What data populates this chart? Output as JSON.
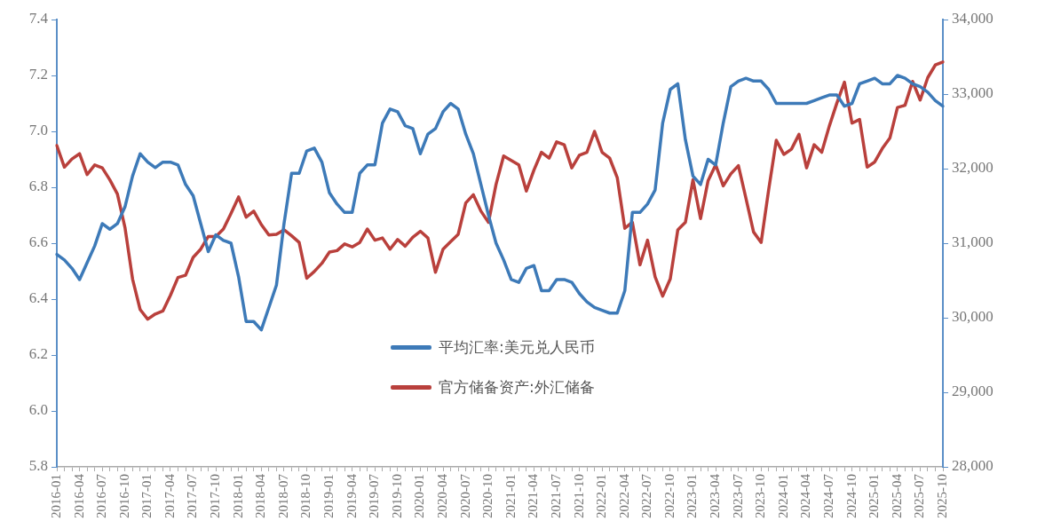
{
  "chart_data": {
    "type": "line",
    "categories": [
      "2016-01",
      null,
      null,
      "2016-04",
      null,
      null,
      "2016-07",
      null,
      null,
      "2016-10",
      null,
      null,
      "2017-01",
      null,
      null,
      "2017-04",
      null,
      null,
      "2017-07",
      null,
      null,
      "2017-10",
      null,
      null,
      "2018-01",
      null,
      null,
      "2018-04",
      null,
      null,
      "2018-07",
      null,
      null,
      "2018-10",
      null,
      null,
      "2019-01",
      null,
      null,
      "2019-04",
      null,
      null,
      "2019-07",
      null,
      null,
      "2019-10",
      null,
      null,
      "2020-01",
      null,
      null,
      "2020-04",
      null,
      null,
      "2020-07",
      null,
      null,
      "2020-10",
      null,
      null,
      "2021-01",
      null,
      null,
      "2021-04",
      null,
      null,
      "2021-07",
      null,
      null,
      "2021-10",
      null,
      null,
      "2022-01",
      null,
      null,
      "2022-04",
      null,
      null,
      "2022-07",
      null,
      null,
      "2022-10",
      null,
      null,
      "2023-01",
      null,
      null,
      "2023-04",
      null,
      null,
      "2023-07",
      null,
      null,
      "2023-10",
      null,
      null,
      "2024-01",
      null,
      null,
      "2024-04",
      null,
      null,
      "2024-07",
      null,
      null,
      "2024-10",
      null,
      null,
      "2025-01",
      null,
      null,
      "2025-04",
      null,
      null,
      "2025-07",
      null,
      null,
      "2025-10"
    ],
    "series": [
      {
        "name": "平均汇率:美元兑人民币",
        "color": "#3d7ab8",
        "values": [
          6.56,
          6.54,
          6.51,
          6.47,
          6.53,
          6.59,
          6.67,
          6.65,
          6.67,
          6.73,
          6.84,
          6.92,
          6.89,
          6.87,
          6.89,
          6.89,
          6.88,
          6.81,
          6.77,
          6.67,
          6.57,
          6.63,
          6.61,
          6.6,
          6.48,
          6.32,
          6.32,
          6.29,
          6.37,
          6.45,
          6.67,
          6.85,
          6.85,
          6.93,
          6.94,
          6.89,
          6.78,
          6.74,
          6.71,
          6.71,
          6.85,
          6.88,
          6.88,
          7.03,
          7.08,
          7.07,
          7.02,
          7.01,
          6.92,
          6.99,
          7.01,
          7.07,
          7.1,
          7.08,
          6.99,
          6.92,
          6.81,
          6.7,
          6.6,
          6.54,
          6.47,
          6.46,
          6.51,
          6.52,
          6.43,
          6.43,
          6.47,
          6.47,
          6.46,
          6.42,
          6.39,
          6.37,
          6.36,
          6.35,
          6.35,
          6.43,
          6.71,
          6.71,
          6.74,
          6.79,
          7.03,
          7.15,
          7.17,
          6.97,
          6.84,
          6.81,
          6.9,
          6.88,
          7.03,
          7.16,
          7.18,
          7.19,
          7.18,
          7.18,
          7.15,
          7.1,
          7.1,
          7.1,
          7.1,
          7.1,
          7.11,
          7.12,
          7.13,
          7.13,
          7.09,
          7.1,
          7.17,
          7.18,
          7.19,
          7.17,
          7.17,
          7.2,
          7.19,
          7.17,
          7.16,
          7.14,
          7.11,
          7.09
        ]
      },
      {
        "name": "官方储备资产:外汇储备",
        "color": "#b9403c",
        "axis": "y2",
        "values": [
          32310,
          32020,
          32130,
          32200,
          31920,
          32050,
          32010,
          31850,
          31660,
          31210,
          30520,
          30110,
          29980,
          30050,
          30090,
          30300,
          30540,
          30570,
          30810,
          30920,
          31090,
          31090,
          31190,
          31400,
          31620,
          31350,
          31430,
          31250,
          31110,
          31120,
          31180,
          31100,
          31010,
          30530,
          30620,
          30730,
          30880,
          30900,
          30990,
          30950,
          31010,
          31190,
          31040,
          31070,
          30920,
          31050,
          30960,
          31080,
          31160,
          31070,
          30610,
          30920,
          31020,
          31120,
          31540,
          31650,
          31430,
          31280,
          31790,
          32170,
          32110,
          32050,
          31700,
          31980,
          32220,
          32140,
          32360,
          32320,
          32010,
          32180,
          32220,
          32500,
          32220,
          32140,
          31880,
          31200,
          31280,
          30710,
          31040,
          30550,
          30290,
          30520,
          31180,
          31280,
          31850,
          31330,
          31840,
          32050,
          31770,
          31930,
          32040,
          31600,
          31150,
          31010,
          31720,
          32380,
          32190,
          32260,
          32460,
          32010,
          32320,
          32220,
          32570,
          32880,
          33160,
          32610,
          32660,
          32020,
          32090,
          32270,
          32410,
          32820,
          32850,
          33170,
          32920,
          33220,
          33390,
          33430
        ]
      }
    ],
    "ylim": [
      5.8,
      7.4
    ],
    "yticks": [
      5.8,
      {
        "value": 6,
        "label": "6.0"
      },
      6.2,
      6.4,
      6.6,
      6.8,
      {
        "value": 7,
        "label": "7.0"
      },
      7.2,
      7.4
    ],
    "y2lim": [
      28000,
      34000
    ],
    "y2ticks": [
      {
        "value": 28000,
        "label": "28,000"
      },
      {
        "value": 29000,
        "label": "29,000"
      },
      {
        "value": 30000,
        "label": "30,000"
      },
      {
        "value": 31000,
        "label": "31,000"
      },
      {
        "value": 32000,
        "label": "32,000"
      },
      {
        "value": 33000,
        "label": "33,000"
      },
      {
        "value": 34000,
        "label": "34,000"
      }
    ],
    "grid": false,
    "legend": "bottom",
    "marker": "none",
    "line_style": "solid"
  }
}
